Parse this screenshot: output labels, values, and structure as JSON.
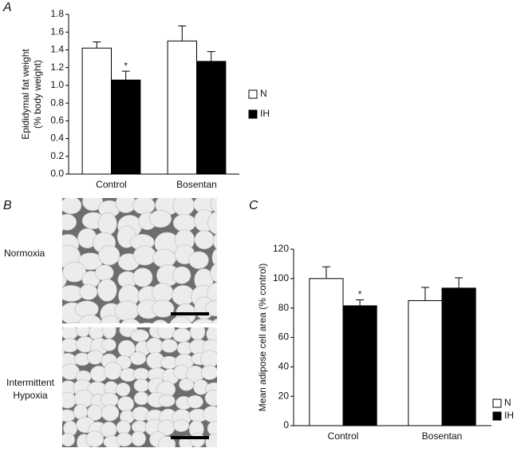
{
  "panels": [
    "A",
    "B",
    "C"
  ],
  "micrographs": {
    "labels": [
      [
        "Normoxia"
      ],
      [
        "Intermittent",
        "Hypoxia"
      ]
    ]
  },
  "chart_data": [
    {
      "type": "bar",
      "ylabel": [
        "Epididymal fat weight",
        "(% body weight)"
      ],
      "categories": [
        "Control",
        "Bosentan"
      ],
      "series": [
        {
          "name": "N",
          "color": "#ffffff",
          "values": [
            1.42,
            1.5
          ],
          "errors": [
            0.07,
            0.17
          ]
        },
        {
          "name": "IH",
          "color": "#000000",
          "values": [
            1.06,
            1.27
          ],
          "errors": [
            0.1,
            0.11
          ]
        }
      ],
      "annotation": "*",
      "ylim": [
        0,
        1.8
      ],
      "yticks": [
        {
          "value": 0,
          "label": "0.0"
        },
        {
          "value": 0.2,
          "label": "0.2"
        },
        {
          "value": 0.4,
          "label": "0.4"
        },
        {
          "value": 0.6,
          "label": "0.6"
        },
        {
          "value": 0.8,
          "label": "0.8"
        },
        {
          "value": 1,
          "label": "1.0"
        },
        {
          "value": 1.2,
          "label": "1.2"
        },
        {
          "value": 1.4,
          "label": "1.4"
        },
        {
          "value": 1.6,
          "label": "1.6"
        },
        {
          "value": 1.8,
          "label": "1.8"
        }
      ],
      "legend": "right"
    },
    {
      "type": "bar",
      "ylabel": [
        "Mean adipose cell area (% control)"
      ],
      "categories": [
        "Control",
        "Bosentan"
      ],
      "series": [
        {
          "name": "N",
          "color": "#ffffff",
          "values": [
            100,
            85
          ],
          "errors": [
            8,
            9
          ]
        },
        {
          "name": "IH",
          "color": "#000000",
          "values": [
            81.5,
            93.5
          ],
          "errors": [
            4,
            7
          ]
        }
      ],
      "annotation": "*",
      "ylim": [
        0,
        120
      ],
      "yticks": [
        0,
        20,
        40,
        60,
        80,
        100,
        120
      ],
      "legend": "right"
    }
  ]
}
